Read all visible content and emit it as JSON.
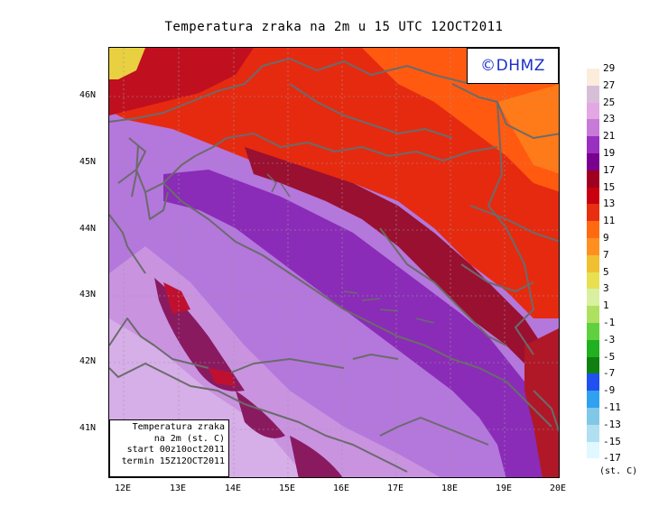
{
  "title": "Temperatura zraka na 2m u 15 UTC 12OCT2011",
  "logo": "©DHMZ",
  "info_box": {
    "line1": "Temperatura zraka",
    "line2": "na 2m (st. C)",
    "line3": "start 00z10oct2011",
    "line4": "termin 15Z12OCT2011"
  },
  "lat_labels": [
    "46N",
    "45N",
    "44N",
    "43N",
    "42N",
    "41N"
  ],
  "lon_labels": [
    "12E",
    "13E",
    "14E",
    "15E",
    "16E",
    "17E",
    "18E",
    "19E",
    "20E"
  ],
  "legend": {
    "unit": "(st. C)",
    "labels": [
      "29",
      "27",
      "25",
      "23",
      "21",
      "19",
      "17",
      "15",
      "13",
      "11",
      "9",
      "7",
      "5",
      "3",
      "1",
      "-1",
      "-3",
      "-5",
      "-7",
      "-9",
      "-11",
      "-13",
      "-15",
      "-17"
    ],
    "colors": [
      "#fcecdc",
      "#d8bfd8",
      "#e3a8e3",
      "#c77ad8",
      "#9a30c0",
      "#7a0090",
      "#a00020",
      "#c80010",
      "#e83010",
      "#ff6a10",
      "#ff9020",
      "#f0c030",
      "#e8e050",
      "#d8f0a0",
      "#b0e060",
      "#60d040",
      "#20b020",
      "#108010",
      "#2050f0",
      "#30a0f0",
      "#80c8e8",
      "#b0e0f0",
      "#e0f8ff",
      "#ffffff"
    ]
  },
  "colors": {
    "sea": "#b477dc",
    "coast_line": "#6b6b6b",
    "land_warm": "#e62a10",
    "land_hot": "#ff6a10",
    "land_cool": "#9a1030",
    "logo_text": "#1a2fc8"
  }
}
